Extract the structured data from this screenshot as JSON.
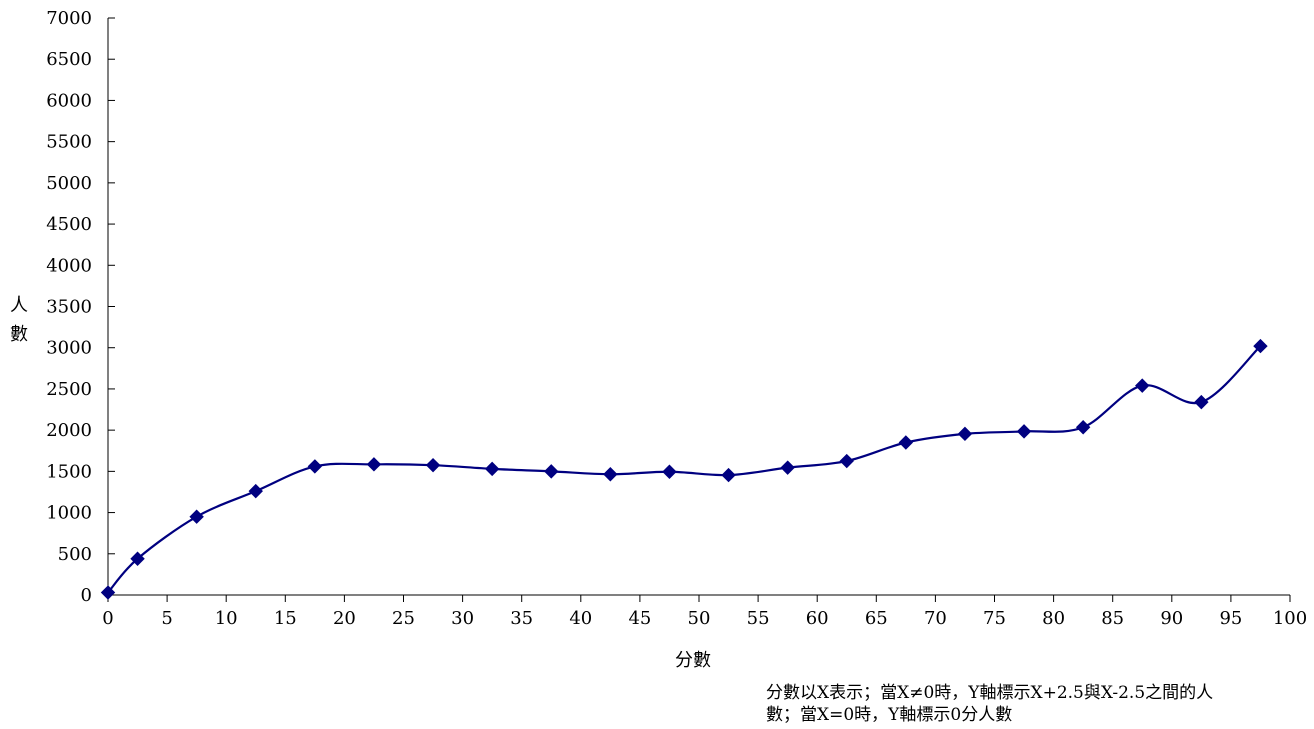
{
  "chart_data": {
    "type": "line",
    "xlabel": "分數",
    "ylabel": "人數",
    "xlim": [
      0,
      100
    ],
    "ylim": [
      0,
      7000
    ],
    "x_ticks": [
      0,
      5,
      10,
      15,
      20,
      25,
      30,
      35,
      40,
      45,
      50,
      55,
      60,
      65,
      70,
      75,
      80,
      85,
      90,
      95,
      100
    ],
    "y_ticks": [
      0,
      500,
      1000,
      1500,
      2000,
      2500,
      3000,
      3500,
      4000,
      4500,
      5000,
      5500,
      6000,
      6500,
      7000
    ],
    "grid": false,
    "line_color": "#000080",
    "marker": "diamond",
    "series": [
      {
        "x": [
          0,
          2.5,
          7.5,
          12.5,
          17.5,
          22.5,
          27.5,
          32.5,
          37.5,
          42.5,
          47.5,
          52.5,
          57.5,
          62.5,
          67.5,
          72.5,
          77.5,
          82.5,
          87.5,
          92.5,
          97.5
        ],
        "y": [
          30,
          440,
          950,
          1260,
          1560,
          1585,
          1575,
          1530,
          1500,
          1465,
          1495,
          1455,
          1545,
          1625,
          1850,
          1955,
          1985,
          2035,
          2540,
          2340,
          3020
        ]
      }
    ]
  },
  "note": {
    "line1": "分數以X表示；當X≠0時，Y軸標示X+2.5與X-2.5之間的人",
    "line2": "數；當X=0時，Y軸標示0分人數"
  }
}
